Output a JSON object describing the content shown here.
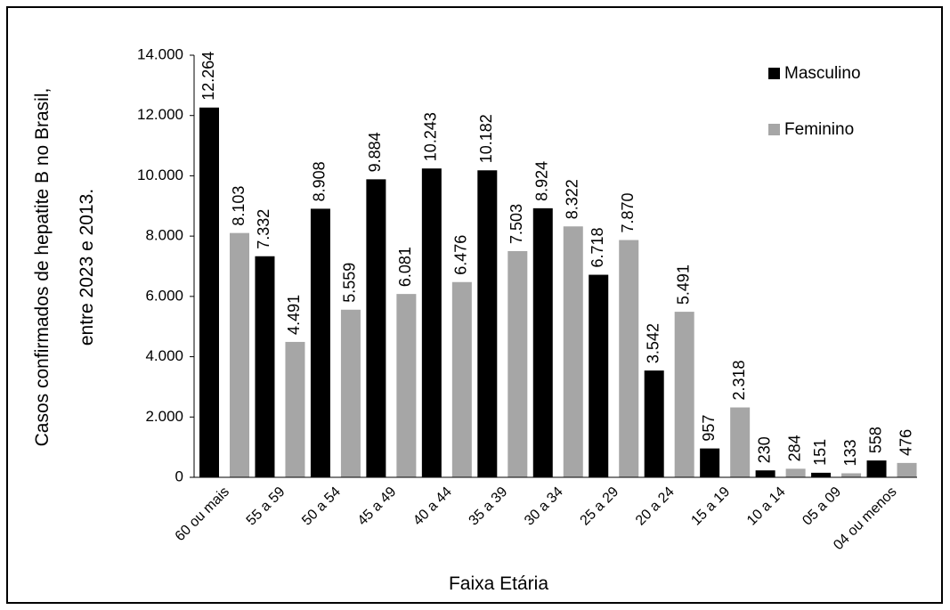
{
  "chart_data": {
    "type": "bar",
    "y_label": [
      "Casos confirmados de hepatite B no Brasil,",
      "entre 2023 e 2013."
    ],
    "x_label": "Faixa Etária",
    "categories": [
      "60 ou mais",
      "55 a 59",
      "50 a 54",
      "45 a 49",
      "40 a 44",
      "35 a 39",
      "30 a 34",
      "25 a 29",
      "20 a 24",
      "15 a 19",
      "10 a 14",
      "05 a 09",
      "04 ou menos"
    ],
    "series": [
      {
        "name": "Masculino",
        "color": "#000000",
        "values": [
          12264,
          7332,
          8908,
          9884,
          10243,
          10182,
          8924,
          6718,
          3542,
          957,
          230,
          151,
          558
        ],
        "value_labels": [
          "12.264",
          "7.332",
          "8.908",
          "9.884",
          "10.243",
          "10.182",
          "8.924",
          "6.718",
          "3.542",
          "957",
          "230",
          "151",
          "558"
        ]
      },
      {
        "name": "Feminino",
        "color": "#a6a6a6",
        "values": [
          8103,
          4491,
          5559,
          6081,
          6476,
          7503,
          8322,
          7870,
          5491,
          2318,
          284,
          133,
          476
        ],
        "value_labels": [
          "8.103",
          "4.491",
          "5.559",
          "6.081",
          "6.476",
          "7.503",
          "8.322",
          "7.870",
          "5.491",
          "2.318",
          "284",
          "133",
          "476"
        ]
      }
    ],
    "ylim": [
      0,
      14000
    ],
    "yticks": [
      0,
      {
        "value": 2000,
        "label": "2.000"
      },
      {
        "value": 4000,
        "label": "4.000"
      },
      {
        "value": 6000,
        "label": "6.000"
      },
      {
        "value": 8000,
        "label": "8.000"
      },
      {
        "value": 10000,
        "label": "10.000"
      },
      {
        "value": 12000,
        "label": "12.000"
      },
      {
        "value": 14000,
        "label": "14.000"
      }
    ],
    "grid": false,
    "legend": "top-right"
  }
}
